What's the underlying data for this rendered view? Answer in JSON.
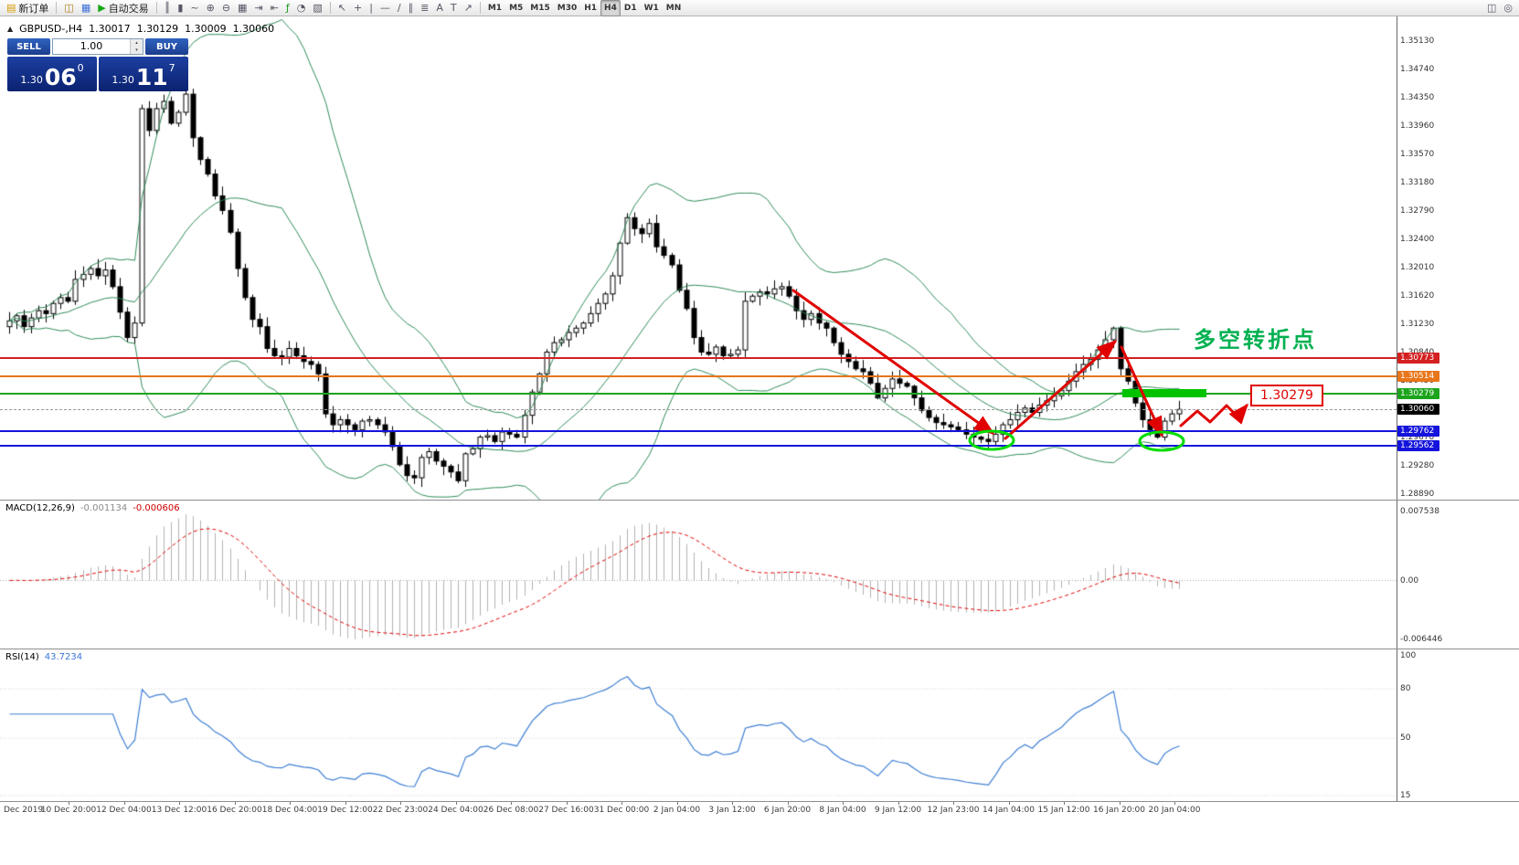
{
  "window": {
    "bg": "#ffffff"
  },
  "toolbar": {
    "groups": [
      {
        "items": [
          {
            "name": "new-order-button",
            "glyph": "▤",
            "glyph_color": "#d89a00",
            "label": "新订单"
          }
        ]
      },
      {
        "items": [
          {
            "name": "market-watch-button",
            "glyph": "◫",
            "glyph_color": "#b08020"
          },
          {
            "name": "navigator-button",
            "glyph": "▦",
            "glyph_color": "#3a6fd8"
          },
          {
            "name": "autotrading-button",
            "glyph": "▶",
            "glyph_color": "#18a818",
            "label": "自动交易"
          }
        ]
      },
      {
        "items": [
          {
            "name": "bar-chart-button",
            "glyph": "║"
          },
          {
            "name": "candlestick-chart-button",
            "glyph": "▮"
          },
          {
            "name": "line-chart-button",
            "glyph": "~"
          },
          {
            "name": "zoom-in-button",
            "glyph": "⊕"
          },
          {
            "name": "zoom-out-button",
            "glyph": "⊖"
          },
          {
            "name": "tile-windows-button",
            "glyph": "▦"
          },
          {
            "name": "auto-scroll-button",
            "glyph": "⇥"
          },
          {
            "name": "chart-shift-button",
            "glyph": "⇤"
          },
          {
            "name": "indicators-button",
            "glyph": "ƒ",
            "glyph_color": "#1a9a1a"
          },
          {
            "name": "periods-button",
            "glyph": "◔"
          },
          {
            "name": "templates-button",
            "glyph": "▧"
          }
        ]
      },
      {
        "items": [
          {
            "name": "cursor-button",
            "glyph": "↖"
          },
          {
            "name": "crosshair-button",
            "glyph": "+"
          },
          {
            "name": "vertical-line-button",
            "glyph": "|"
          },
          {
            "name": "horizontal-line-button",
            "glyph": "—"
          },
          {
            "name": "trendline-button",
            "glyph": "∕"
          },
          {
            "name": "channel-button",
            "glyph": "∥"
          },
          {
            "name": "fibonacci-button",
            "glyph": "≣"
          },
          {
            "name": "text-button",
            "glyph": "A"
          },
          {
            "name": "text-label-button",
            "glyph": "T"
          },
          {
            "name": "arrows-button",
            "glyph": "↗"
          }
        ]
      },
      {
        "items": [
          {
            "name": "timeframe-m1",
            "label": "M1"
          },
          {
            "name": "timeframe-m5",
            "label": "M5"
          },
          {
            "name": "timeframe-m15",
            "label": "M15"
          },
          {
            "name": "timeframe-m30",
            "label": "M30"
          },
          {
            "name": "timeframe-h1",
            "label": "H1"
          },
          {
            "name": "timeframe-h4",
            "label": "H4",
            "active": true
          },
          {
            "name": "timeframe-d1",
            "label": "D1"
          },
          {
            "name": "timeframe-w1",
            "label": "W1"
          },
          {
            "name": "timeframe-mn",
            "label": "MN"
          }
        ]
      }
    ],
    "right_items": [
      {
        "name": "window-arrange-button",
        "glyph": "◫"
      },
      {
        "name": "search-button",
        "glyph": "◎"
      }
    ]
  },
  "chart": {
    "header": {
      "toggle_glyph": "▲",
      "symbol_period": "GBPUSD-,H4",
      "open": "1.30017",
      "high": "1.30129",
      "low": "1.30009",
      "close": "1.30060"
    },
    "price_axis_labels": [
      "1.35130",
      "1.34740",
      "1.34350",
      "1.33960",
      "1.33570",
      "1.33180",
      "1.32790",
      "1.32400",
      "1.32010",
      "1.31620",
      "1.31230",
      "1.30840",
      "1.30450",
      "1.29670",
      "1.29280",
      "1.28890"
    ],
    "levels": [
      {
        "price": "1.30773",
        "color": "#d42020"
      },
      {
        "price": "1.30514",
        "color": "#e8761a"
      },
      {
        "price": "1.30279",
        "color": "#1ca41c"
      },
      {
        "price": "1.29762",
        "color": "#1414dc"
      },
      {
        "price": "1.29562",
        "color": "#1414dc"
      }
    ],
    "current_price": "1.30060"
  },
  "trade_panel": {
    "sell_label": "SELL",
    "buy_label": "BUY",
    "volume": "1.00",
    "spinner_up": "▴",
    "spinner_down": "▾",
    "sell_price": {
      "small": "1.30",
      "big": "06",
      "sup": "0"
    },
    "buy_price": {
      "small": "1.30",
      "big": "11",
      "sup": "7"
    }
  },
  "macd": {
    "label": "MACD(12,26,9)",
    "value_main": "-0.001134",
    "value_signal": "-0.000606",
    "axis_labels": [
      "0.007538",
      "0.00",
      "-0.006446"
    ]
  },
  "rsi": {
    "label": "RSI(14)",
    "value": "43.7234",
    "axis_labels": [
      "100",
      "80",
      "50",
      "15"
    ]
  },
  "annotations": {
    "turning_point_text": "多空转折点",
    "price_callout": "1.30279"
  },
  "time_axis": {
    "labels": [
      "Dec 2019",
      "10 Dec 20:00",
      "12 Dec 04:00",
      "13 Dec 12:00",
      "16 Dec 20:00",
      "18 Dec 04:00",
      "19 Dec 12:00",
      "22 Dec 23:00",
      "24 Dec 04:00",
      "26 Dec 08:00",
      "27 Dec 16:00",
      "31 Dec 00:00",
      "2 Jan 04:00",
      "3 Jan 12:00",
      "6 Jan 20:00",
      "8 Jan 04:00",
      "9 Jan 12:00",
      "12 Jan 23:00",
      "14 Jan 04:00",
      "15 Jan 12:00",
      "16 Jan 20:00",
      "20 Jan 04:00"
    ]
  },
  "chart_data": {
    "type": "candlestick",
    "symbol": "GBPUSD",
    "period": "H4",
    "price_range": [
      1.2889,
      1.3513
    ],
    "bollinger": {
      "period": 20,
      "deviation": 2
    },
    "macd_params": [
      12,
      26,
      9
    ],
    "rsi_period": 14,
    "closes": [
      1.3128,
      1.3135,
      1.312,
      1.3132,
      1.3142,
      1.3138,
      1.3152,
      1.316,
      1.3155,
      1.3185,
      1.3192,
      1.32,
      1.319,
      1.3198,
      1.3175,
      1.314,
      1.3105,
      1.3125,
      1.342,
      1.339,
      1.342,
      1.343,
      1.34,
      1.3415,
      1.344,
      1.338,
      1.335,
      1.333,
      1.33,
      1.328,
      1.325,
      1.32,
      1.316,
      1.313,
      1.312,
      1.309,
      1.308,
      1.3078,
      1.309,
      1.308,
      1.3072,
      1.3068,
      1.3055,
      1.3,
      1.2985,
      1.2992,
      1.2985,
      1.2978,
      1.299,
      1.2992,
      1.2985,
      1.2975,
      1.2955,
      1.293,
      1.2915,
      1.2912,
      1.294,
      1.2948,
      1.2935,
      1.2928,
      1.292,
      1.2908,
      1.2945,
      1.2952,
      1.2968,
      1.297,
      1.2962,
      1.2975,
      1.2972,
      1.2968,
      1.2998,
      1.303,
      1.3055,
      1.3085,
      1.3098,
      1.3102,
      1.3112,
      1.3118,
      1.3125,
      1.3138,
      1.3152,
      1.3165,
      1.319,
      1.3235,
      1.327,
      1.3255,
      1.3248,
      1.3262,
      1.323,
      1.3218,
      1.3205,
      1.317,
      1.3145,
      1.3105,
      1.3085,
      1.3082,
      1.3092,
      1.308,
      1.3082,
      1.3088,
      1.3155,
      1.3162,
      1.3168,
      1.3165,
      1.3172,
      1.3175,
      1.3162,
      1.3142,
      1.313,
      1.3138,
      1.3125,
      1.3118,
      1.3098,
      1.3082,
      1.3072,
      1.3062,
      1.3058,
      1.3042,
      1.3022,
      1.3035,
      1.3048,
      1.3042,
      1.3038,
      1.3022,
      1.3005,
      1.2995,
      1.2988,
      1.2985,
      1.2982,
      1.2978,
      1.2972,
      1.2968,
      1.2965,
      1.2962,
      1.2972,
      1.2985,
      1.2992,
      1.3002,
      1.3008,
      1.3002,
      1.3012,
      1.3018,
      1.3025,
      1.3032,
      1.3045,
      1.3058,
      1.3068,
      1.3075,
      1.3088,
      1.3102,
      1.3118,
      1.3062,
      1.3045,
      1.3015,
      1.2992,
      1.2978,
      1.2968,
      1.299,
      1.3,
      1.3006
    ]
  }
}
